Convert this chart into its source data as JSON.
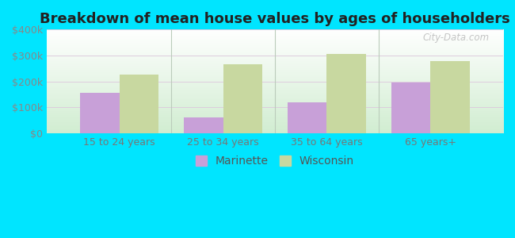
{
  "title": "Breakdown of mean house values by ages of householders",
  "categories": [
    "15 to 24 years",
    "25 to 34 years",
    "35 to 64 years",
    "65 years+"
  ],
  "marinette_values": [
    155000,
    60000,
    120000,
    195000
  ],
  "wisconsin_values": [
    225000,
    265000,
    305000,
    278000
  ],
  "marinette_color": "#c8a0d8",
  "wisconsin_color": "#c8d8a0",
  "background_color": "#00e5ff",
  "ylim": [
    0,
    400000
  ],
  "yticks": [
    0,
    100000,
    200000,
    300000,
    400000
  ],
  "ytick_labels": [
    "$0",
    "$100k",
    "$200k",
    "$300k",
    "$400k"
  ],
  "legend_labels": [
    "Marinette",
    "Wisconsin"
  ],
  "watermark": "City-Data.com",
  "title_fontsize": 13,
  "tick_fontsize": 9,
  "legend_fontsize": 10,
  "bar_width": 0.38,
  "grid_color": "#ccddcc"
}
